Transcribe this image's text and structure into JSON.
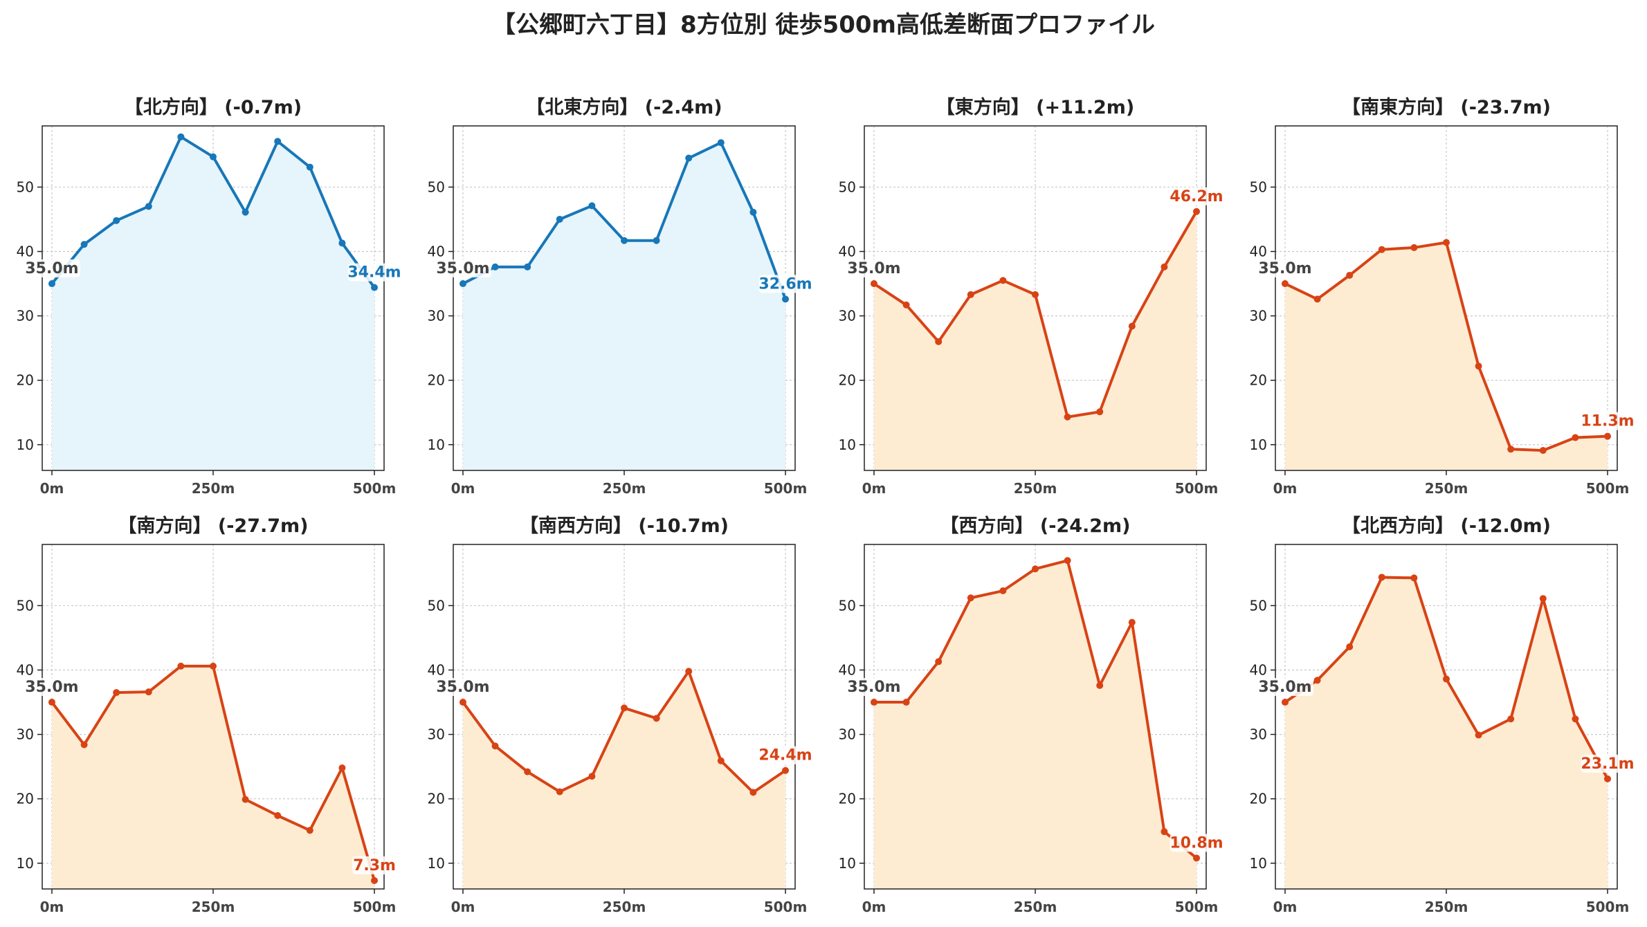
{
  "suptitle": "【公郷町六丁目】8方位別 徒歩500m高低差断面プロファイル",
  "colors": {
    "up_line": "#1777b8",
    "up_fill": "#e6f4fb",
    "down_line": "#d84315",
    "down_fill": "#feecd2",
    "start_label": "#444444",
    "grid": "#c8c8c8"
  },
  "chart_data": [
    {
      "type": "area",
      "title": "【北方向】 (-0.7m)",
      "trend": "up",
      "x": [
        0,
        50,
        100,
        150,
        200,
        250,
        300,
        350,
        400,
        450,
        500
      ],
      "values": [
        35.0,
        41.1,
        44.8,
        47.0,
        57.8,
        54.7,
        46.1,
        57.1,
        53.1,
        41.3,
        34.4
      ],
      "start_label": "35.0m",
      "end_label": "34.4m",
      "xticks": [
        0,
        250,
        500
      ],
      "xtick_labels": [
        "0m",
        "250m",
        "500m"
      ],
      "yticks": [
        10,
        20,
        30,
        40,
        50
      ],
      "ylim": [
        6,
        59.5
      ],
      "xlim": [
        -15,
        515
      ],
      "grid": true
    },
    {
      "type": "area",
      "title": "【北東方向】 (-2.4m)",
      "trend": "up",
      "x": [
        0,
        50,
        100,
        150,
        200,
        250,
        300,
        350,
        400,
        450,
        500
      ],
      "values": [
        35.0,
        37.6,
        37.6,
        45.0,
        47.1,
        41.7,
        41.7,
        54.5,
        56.9,
        46.1,
        32.6
      ],
      "start_label": "35.0m",
      "end_label": "32.6m",
      "xticks": [
        0,
        250,
        500
      ],
      "xtick_labels": [
        "0m",
        "250m",
        "500m"
      ],
      "yticks": [
        10,
        20,
        30,
        40,
        50
      ],
      "ylim": [
        6,
        59.5
      ],
      "xlim": [
        -15,
        515
      ],
      "grid": true
    },
    {
      "type": "area",
      "title": "【東方向】 (+11.2m)",
      "trend": "down",
      "x": [
        0,
        50,
        100,
        150,
        200,
        250,
        300,
        350,
        400,
        450,
        500
      ],
      "values": [
        35.0,
        31.7,
        26.0,
        33.3,
        35.5,
        33.3,
        14.3,
        15.1,
        28.4,
        37.6,
        46.2
      ],
      "start_label": "35.0m",
      "end_label": "46.2m",
      "xticks": [
        0,
        250,
        500
      ],
      "xtick_labels": [
        "0m",
        "250m",
        "500m"
      ],
      "yticks": [
        10,
        20,
        30,
        40,
        50
      ],
      "ylim": [
        6,
        59.5
      ],
      "xlim": [
        -15,
        515
      ],
      "grid": true
    },
    {
      "type": "area",
      "title": "【南東方向】 (-23.7m)",
      "trend": "down",
      "x": [
        0,
        50,
        100,
        150,
        200,
        250,
        300,
        350,
        400,
        450,
        500
      ],
      "values": [
        35.0,
        32.6,
        36.3,
        40.3,
        40.6,
        41.4,
        22.2,
        9.3,
        9.1,
        11.1,
        11.3
      ],
      "start_label": "35.0m",
      "end_label": "11.3m",
      "xticks": [
        0,
        250,
        500
      ],
      "xtick_labels": [
        "0m",
        "250m",
        "500m"
      ],
      "yticks": [
        10,
        20,
        30,
        40,
        50
      ],
      "ylim": [
        6,
        59.5
      ],
      "xlim": [
        -15,
        515
      ],
      "grid": true
    },
    {
      "type": "area",
      "title": "【南方向】 (-27.7m)",
      "trend": "down",
      "x": [
        0,
        50,
        100,
        150,
        200,
        250,
        300,
        350,
        400,
        450,
        500
      ],
      "values": [
        35.0,
        28.4,
        36.5,
        36.6,
        40.6,
        40.6,
        19.9,
        17.4,
        15.1,
        24.8,
        7.3
      ],
      "start_label": "35.0m",
      "end_label": "7.3m",
      "xticks": [
        0,
        250,
        500
      ],
      "xtick_labels": [
        "0m",
        "250m",
        "500m"
      ],
      "yticks": [
        10,
        20,
        30,
        40,
        50
      ],
      "ylim": [
        6,
        59.5
      ],
      "xlim": [
        -15,
        515
      ],
      "grid": true
    },
    {
      "type": "area",
      "title": "【南西方向】 (-10.7m)",
      "trend": "down",
      "x": [
        0,
        50,
        100,
        150,
        200,
        250,
        300,
        350,
        400,
        450,
        500
      ],
      "values": [
        35.0,
        28.2,
        24.2,
        21.1,
        23.5,
        34.1,
        32.5,
        39.8,
        25.9,
        21.0,
        24.4
      ],
      "start_label": "35.0m",
      "end_label": "24.4m",
      "xticks": [
        0,
        250,
        500
      ],
      "xtick_labels": [
        "0m",
        "250m",
        "500m"
      ],
      "yticks": [
        10,
        20,
        30,
        40,
        50
      ],
      "ylim": [
        6,
        59.5
      ],
      "xlim": [
        -15,
        515
      ],
      "grid": true
    },
    {
      "type": "area",
      "title": "【西方向】 (-24.2m)",
      "trend": "down",
      "x": [
        0,
        50,
        100,
        150,
        200,
        250,
        300,
        350,
        400,
        450,
        500
      ],
      "values": [
        35.0,
        35.0,
        41.3,
        51.2,
        52.3,
        55.7,
        57.0,
        37.6,
        47.4,
        14.9,
        10.8
      ],
      "start_label": "35.0m",
      "end_label": "10.8m",
      "xticks": [
        0,
        250,
        500
      ],
      "xtick_labels": [
        "0m",
        "250m",
        "500m"
      ],
      "yticks": [
        10,
        20,
        30,
        40,
        50
      ],
      "ylim": [
        6,
        59.5
      ],
      "xlim": [
        -15,
        515
      ],
      "grid": true
    },
    {
      "type": "area",
      "title": "【北西方向】 (-12.0m)",
      "trend": "down",
      "x": [
        0,
        50,
        100,
        150,
        200,
        250,
        300,
        350,
        400,
        450,
        500
      ],
      "values": [
        35.0,
        38.4,
        43.6,
        54.4,
        54.3,
        38.6,
        29.9,
        32.4,
        51.1,
        32.4,
        23.1
      ],
      "start_label": "35.0m",
      "end_label": "23.1m",
      "xticks": [
        0,
        250,
        500
      ],
      "xtick_labels": [
        "0m",
        "250m",
        "500m"
      ],
      "yticks": [
        10,
        20,
        30,
        40,
        50
      ],
      "ylim": [
        6,
        59.5
      ],
      "xlim": [
        -15,
        515
      ],
      "grid": true
    }
  ]
}
